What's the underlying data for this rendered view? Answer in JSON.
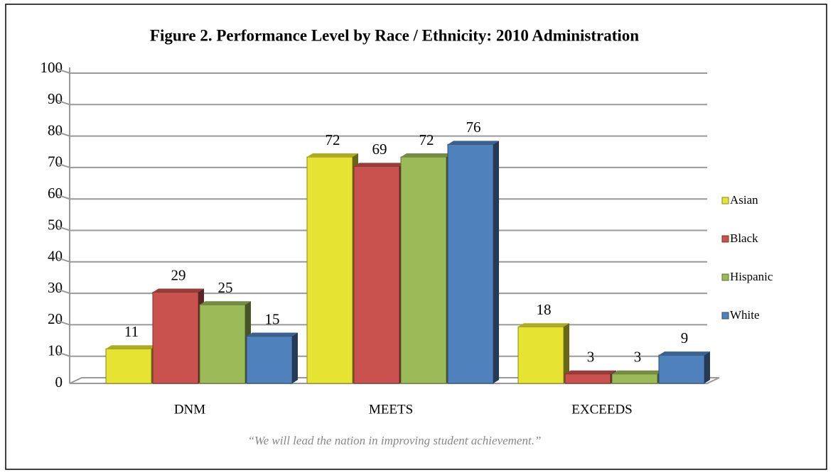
{
  "chart_data": {
    "type": "bar",
    "title": "Figure 2. Performance Level by Race / Ethnicity: 2010 Administration",
    "categories": [
      "DNM",
      "MEETS",
      "EXCEEDS"
    ],
    "series": [
      {
        "name": "Asian",
        "color": "#e6e332",
        "values": [
          11,
          72,
          18
        ]
      },
      {
        "name": "Black",
        "color": "#c9524f",
        "values": [
          29,
          69,
          3
        ]
      },
      {
        "name": "Hispanic",
        "color": "#9bbb59",
        "values": [
          25,
          72,
          3
        ]
      },
      {
        "name": "White",
        "color": "#4f81bd",
        "values": [
          15,
          76,
          9
        ]
      }
    ],
    "ylim": [
      0,
      100
    ],
    "yticks": [
      0,
      10,
      20,
      30,
      40,
      50,
      60,
      70,
      80,
      90,
      100
    ],
    "grid": true,
    "legend": "right",
    "caption": "“We will lead the nation in improving student achievement.”"
  }
}
